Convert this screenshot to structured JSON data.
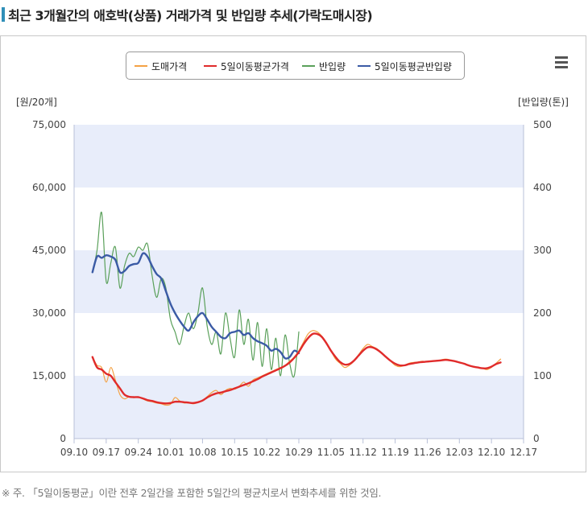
{
  "title": "최근 3개월간의 애호박(상품) 거래가격 및 반입량 추세(가락도매시장)",
  "footnote": "※ 주. 「5일이동평균」이란 전후 2일간을 포함한 5일간의 평균치로서 변화추세를 위한 것임.",
  "legend": [
    {
      "label": "도매가격",
      "color": "#f4a244"
    },
    {
      "label": "5일이동평균가격",
      "color": "#e02b2b"
    },
    {
      "label": "반입량",
      "color": "#5aa05a"
    },
    {
      "label": "5일이동평균반입량",
      "color": "#3b5ba5"
    }
  ],
  "menu_icon": "hamburger-menu-icon",
  "chart_data": {
    "type": "line",
    "title": "최근 3개월간의 애호박(상품) 거래가격 및 반입량 추세(가락도매시장)",
    "ylabel": "[원/20개]",
    "y2label": "[반입량(톤)]",
    "ylim": [
      0,
      75000
    ],
    "y2lim": [
      0,
      500
    ],
    "yticks": [
      "0",
      "15,000",
      "30,000",
      "45,000",
      "60,000",
      "75,000"
    ],
    "y2ticks": [
      "0",
      "100",
      "200",
      "300",
      "400",
      "500"
    ],
    "xticks": [
      "09.10",
      "09.17",
      "09.24",
      "10.01",
      "10.08",
      "10.15",
      "10.22",
      "10.29",
      "11.05",
      "11.12",
      "11.19",
      "11.26",
      "12.03",
      "12.10",
      "12.17"
    ],
    "xrange": [
      "09.10",
      "12.17"
    ],
    "bands": "alternating light blue horizontal bands",
    "series": [
      {
        "name": "도매가격",
        "axis": "left",
        "color": "#f4a244",
        "points": [
          [
            "09.14",
            19500
          ],
          [
            "09.15",
            17500
          ],
          [
            "09.16",
            17000
          ],
          [
            "09.17",
            13500
          ],
          [
            "09.18",
            17000
          ],
          [
            "09.19",
            14000
          ],
          [
            "09.20",
            10500
          ],
          [
            "09.21",
            9500
          ],
          [
            "09.22",
            10000
          ],
          [
            "09.23",
            9800
          ],
          [
            "09.24",
            10000
          ],
          [
            "09.25",
            9500
          ],
          [
            "09.26",
            9000
          ],
          [
            "09.27",
            8800
          ],
          [
            "09.28",
            8500
          ],
          [
            "09.29",
            8300
          ],
          [
            "09.30",
            8000
          ],
          [
            "10.01",
            8200
          ],
          [
            "10.02",
            9800
          ],
          [
            "10.03",
            9000
          ],
          [
            "10.04",
            8500
          ],
          [
            "10.05",
            8600
          ],
          [
            "10.06",
            8300
          ],
          [
            "10.07",
            8700
          ],
          [
            "10.08",
            9000
          ],
          [
            "10.09",
            10000
          ],
          [
            "10.10",
            11000
          ],
          [
            "10.11",
            11500
          ],
          [
            "10.12",
            10500
          ],
          [
            "10.13",
            11500
          ],
          [
            "10.14",
            12000
          ],
          [
            "10.15",
            11800
          ],
          [
            "10.16",
            12500
          ],
          [
            "10.17",
            13500
          ],
          [
            "10.18",
            12500
          ],
          [
            "10.19",
            14000
          ],
          [
            "10.20",
            14500
          ],
          [
            "10.21",
            15000
          ],
          [
            "10.22",
            15500
          ],
          [
            "10.23",
            16000
          ],
          [
            "10.24",
            16500
          ],
          [
            "10.25",
            17000
          ],
          [
            "10.26",
            17500
          ],
          [
            "10.27",
            18500
          ],
          [
            "10.28",
            19500
          ],
          [
            "10.29",
            21000
          ],
          [
            "10.30",
            23000
          ],
          [
            "10.31",
            25000
          ],
          [
            "11.01",
            25800
          ],
          [
            "11.02",
            25500
          ],
          [
            "11.03",
            24500
          ],
          [
            "11.04",
            23000
          ],
          [
            "11.05",
            21000
          ],
          [
            "11.06",
            19000
          ],
          [
            "11.07",
            18000
          ],
          [
            "11.08",
            17000
          ],
          [
            "11.09",
            17500
          ],
          [
            "11.10",
            18500
          ],
          [
            "11.11",
            20000
          ],
          [
            "11.12",
            21500
          ],
          [
            "11.13",
            22500
          ],
          [
            "11.14",
            22000
          ],
          [
            "11.15",
            21500
          ],
          [
            "11.16",
            20500
          ],
          [
            "11.17",
            19500
          ],
          [
            "11.18",
            18500
          ],
          [
            "11.19",
            17500
          ],
          [
            "11.20",
            17200
          ],
          [
            "11.21",
            17500
          ],
          [
            "11.22",
            18000
          ],
          [
            "11.23",
            18200
          ],
          [
            "11.24",
            18300
          ],
          [
            "11.25",
            18500
          ],
          [
            "11.26",
            18300
          ],
          [
            "11.27",
            18500
          ],
          [
            "11.28",
            18600
          ],
          [
            "11.29",
            18800
          ],
          [
            "11.30",
            19000
          ],
          [
            "12.01",
            18800
          ],
          [
            "12.02",
            18500
          ],
          [
            "12.03",
            18300
          ],
          [
            "12.04",
            18000
          ],
          [
            "12.05",
            17600
          ],
          [
            "12.06",
            17200
          ],
          [
            "12.07",
            17000
          ],
          [
            "12.08",
            16800
          ],
          [
            "12.09",
            16500
          ],
          [
            "12.10",
            17000
          ],
          [
            "12.11",
            18000
          ],
          [
            "12.12",
            19000
          ]
        ]
      },
      {
        "name": "5일이동평균가격",
        "axis": "left",
        "color": "#e02b2b",
        "points": [
          [
            "09.14",
            19500
          ],
          [
            "09.15",
            17000
          ],
          [
            "09.16",
            16500
          ],
          [
            "09.17",
            15500
          ],
          [
            "09.18",
            15000
          ],
          [
            "09.19",
            13500
          ],
          [
            "09.20",
            12000
          ],
          [
            "09.21",
            10500
          ],
          [
            "09.22",
            10000
          ],
          [
            "09.23",
            9900
          ],
          [
            "09.24",
            9900
          ],
          [
            "09.25",
            9600
          ],
          [
            "09.26",
            9200
          ],
          [
            "09.27",
            9000
          ],
          [
            "09.28",
            8700
          ],
          [
            "09.29",
            8500
          ],
          [
            "09.30",
            8400
          ],
          [
            "10.01",
            8500
          ],
          [
            "10.02",
            8800
          ],
          [
            "10.03",
            8800
          ],
          [
            "10.04",
            8700
          ],
          [
            "10.05",
            8600
          ],
          [
            "10.06",
            8500
          ],
          [
            "10.07",
            8700
          ],
          [
            "10.08",
            9100
          ],
          [
            "10.09",
            9800
          ],
          [
            "10.10",
            10400
          ],
          [
            "10.11",
            10800
          ],
          [
            "10.12",
            11000
          ],
          [
            "10.13",
            11300
          ],
          [
            "10.14",
            11600
          ],
          [
            "10.15",
            12000
          ],
          [
            "10.16",
            12400
          ],
          [
            "10.17",
            12800
          ],
          [
            "10.18",
            13200
          ],
          [
            "10.19",
            13700
          ],
          [
            "10.20",
            14200
          ],
          [
            "10.21",
            14800
          ],
          [
            "10.22",
            15300
          ],
          [
            "10.23",
            15800
          ],
          [
            "10.24",
            16300
          ],
          [
            "10.25",
            16800
          ],
          [
            "10.26",
            17400
          ],
          [
            "10.27",
            18200
          ],
          [
            "10.28",
            19300
          ],
          [
            "10.29",
            20700
          ],
          [
            "10.30",
            22500
          ],
          [
            "10.31",
            24000
          ],
          [
            "11.01",
            25000
          ],
          [
            "11.02",
            25000
          ],
          [
            "11.03",
            24300
          ],
          [
            "11.04",
            22800
          ],
          [
            "11.05",
            21000
          ],
          [
            "11.06",
            19500
          ],
          [
            "11.07",
            18300
          ],
          [
            "11.08",
            17700
          ],
          [
            "11.09",
            17800
          ],
          [
            "11.10",
            18600
          ],
          [
            "11.11",
            19800
          ],
          [
            "11.12",
            21000
          ],
          [
            "11.13",
            21800
          ],
          [
            "11.14",
            21800
          ],
          [
            "11.15",
            21300
          ],
          [
            "11.16",
            20500
          ],
          [
            "11.17",
            19500
          ],
          [
            "11.18",
            18600
          ],
          [
            "11.19",
            17900
          ],
          [
            "11.20",
            17500
          ],
          [
            "11.21",
            17500
          ],
          [
            "11.22",
            17800
          ],
          [
            "11.23",
            18000
          ],
          [
            "11.24",
            18200
          ],
          [
            "11.25",
            18300
          ],
          [
            "11.26",
            18400
          ],
          [
            "11.27",
            18500
          ],
          [
            "11.28",
            18600
          ],
          [
            "11.29",
            18700
          ],
          [
            "11.30",
            18800
          ],
          [
            "12.01",
            18700
          ],
          [
            "12.02",
            18500
          ],
          [
            "12.03",
            18200
          ],
          [
            "12.04",
            17900
          ],
          [
            "12.05",
            17500
          ],
          [
            "12.06",
            17200
          ],
          [
            "12.07",
            17000
          ],
          [
            "12.08",
            16800
          ],
          [
            "12.09",
            16800
          ],
          [
            "12.10",
            17200
          ],
          [
            "12.11",
            17800
          ],
          [
            "12.12",
            18200
          ]
        ]
      },
      {
        "name": "반입량",
        "axis": "right",
        "color": "#5aa05a",
        "points": [
          [
            "09.14",
            265
          ],
          [
            "09.15",
            300
          ],
          [
            "09.16",
            360
          ],
          [
            "09.17",
            250
          ],
          [
            "09.18",
            280
          ],
          [
            "09.19",
            305
          ],
          [
            "09.20",
            240
          ],
          [
            "09.21",
            275
          ],
          [
            "09.22",
            295
          ],
          [
            "09.23",
            290
          ],
          [
            "09.24",
            305
          ],
          [
            "09.25",
            300
          ],
          [
            "09.26",
            310
          ],
          [
            "09.27",
            260
          ],
          [
            "09.28",
            225
          ],
          [
            "09.29",
            255
          ],
          [
            "09.30",
            240
          ],
          [
            "10.01",
            190
          ],
          [
            "10.02",
            170
          ],
          [
            "10.03",
            150
          ],
          [
            "10.04",
            180
          ],
          [
            "10.05",
            200
          ],
          [
            "10.06",
            175
          ],
          [
            "10.07",
            200
          ],
          [
            "10.08",
            240
          ],
          [
            "10.09",
            180
          ],
          [
            "10.10",
            150
          ],
          [
            "10.11",
            170
          ],
          [
            "10.12",
            135
          ],
          [
            "10.13",
            200
          ],
          [
            "10.14",
            160
          ],
          [
            "10.15",
            130
          ],
          [
            "10.16",
            205
          ],
          [
            "10.17",
            150
          ],
          [
            "10.18",
            190
          ],
          [
            "10.19",
            125
          ],
          [
            "10.20",
            185
          ],
          [
            "10.21",
            115
          ],
          [
            "10.22",
            175
          ],
          [
            "10.23",
            110
          ],
          [
            "10.24",
            160
          ],
          [
            "10.25",
            100
          ],
          [
            "10.26",
            165
          ],
          [
            "10.27",
            120
          ],
          [
            "10.28",
            100
          ],
          [
            "10.29",
            170
          ]
        ]
      },
      {
        "name": "5일이동평균반입량",
        "axis": "right",
        "color": "#3b5ba5",
        "points": [
          [
            "09.14",
            265
          ],
          [
            "09.15",
            290
          ],
          [
            "09.16",
            288
          ],
          [
            "09.17",
            292
          ],
          [
            "09.18",
            290
          ],
          [
            "09.19",
            285
          ],
          [
            "09.20",
            265
          ],
          [
            "09.21",
            267
          ],
          [
            "09.22",
            275
          ],
          [
            "09.23",
            278
          ],
          [
            "09.24",
            280
          ],
          [
            "09.25",
            295
          ],
          [
            "09.26",
            290
          ],
          [
            "09.27",
            275
          ],
          [
            "09.28",
            262
          ],
          [
            "09.29",
            255
          ],
          [
            "09.30",
            235
          ],
          [
            "10.01",
            215
          ],
          [
            "10.02",
            200
          ],
          [
            "10.03",
            188
          ],
          [
            "10.04",
            178
          ],
          [
            "10.05",
            172
          ],
          [
            "10.06",
            185
          ],
          [
            "10.07",
            195
          ],
          [
            "10.08",
            200
          ],
          [
            "10.09",
            190
          ],
          [
            "10.10",
            178
          ],
          [
            "10.11",
            170
          ],
          [
            "10.12",
            162
          ],
          [
            "10.13",
            160
          ],
          [
            "10.14",
            168
          ],
          [
            "10.15",
            170
          ],
          [
            "10.16",
            172
          ],
          [
            "10.17",
            165
          ],
          [
            "10.18",
            168
          ],
          [
            "10.19",
            160
          ],
          [
            "10.20",
            155
          ],
          [
            "10.21",
            152
          ],
          [
            "10.22",
            148
          ],
          [
            "10.23",
            140
          ],
          [
            "10.24",
            143
          ],
          [
            "10.25",
            138
          ],
          [
            "10.26",
            128
          ],
          [
            "10.27",
            130
          ],
          [
            "10.28",
            140
          ],
          [
            "10.29",
            136
          ]
        ]
      }
    ]
  }
}
